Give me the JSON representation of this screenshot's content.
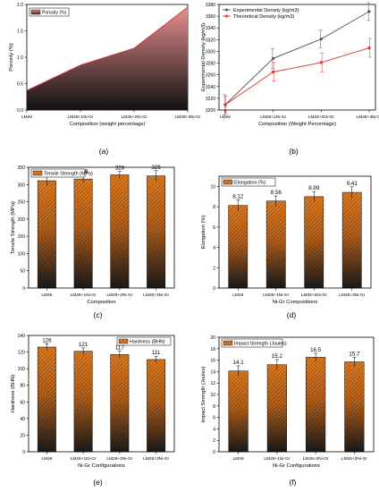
{
  "colors": {
    "porosity_top": "#e88e8e",
    "porosity_bottom": "#111111",
    "porosity_edge": "#d03030",
    "exp_line": "#555555",
    "theo_line": "#e03030",
    "bar_orange": "#e07b20",
    "bar_dark": "#1a1a1a"
  },
  "chart_data": [
    {
      "id": "a",
      "type": "area",
      "panel_label": "(a)",
      "categories": [
        "LM26",
        "LM26+1Ni-Gr",
        "LM26+2Ni-Gr",
        "LM26+3Ni-Gr"
      ],
      "series": [
        {
          "name": "Porosity (%)",
          "values": [
            0.37,
            0.85,
            1.17,
            1.95
          ]
        }
      ],
      "xlabel": "Composition (weight percentage)",
      "ylabel": "Porosity (%)",
      "ylim": [
        0,
        2.0
      ],
      "yticks": [
        "0.0",
        "0.5",
        "1.0",
        "1.5",
        "2.0"
      ],
      "legend": "top-left"
    },
    {
      "id": "b",
      "type": "line",
      "panel_label": "(b)",
      "categories": [
        "LM26",
        "LM26+1Ni-Gr",
        "LM26+2Ni-Gr",
        "LM26+3Ni-Gr"
      ],
      "series": [
        {
          "name": "Experimental Density (kg/m3)",
          "values": [
            3209,
            3288,
            3321,
            3368
          ],
          "errors": [
            17,
            17,
            15,
            15
          ]
        },
        {
          "name": "Theoretical Density (kg/m3)",
          "values": [
            3209,
            3265,
            3281,
            3306
          ],
          "errors": [
            15,
            16,
            16,
            16
          ]
        }
      ],
      "xlabel": "Composition (Weight Percentage)",
      "ylabel": "Experimental Density (kg/m3)",
      "ylim": [
        3200,
        3380
      ],
      "yticks": [
        "3200",
        "3220",
        "3240",
        "3260",
        "3280",
        "3300",
        "3320",
        "3340",
        "3360",
        "3380"
      ],
      "legend": "top-left"
    },
    {
      "id": "c",
      "type": "bar",
      "panel_label": "(c)",
      "categories": [
        "LM26",
        "LM26+1Ni-Gr",
        "LM26+2Ni-Gr",
        "LM26+3Ni-Gr"
      ],
      "series": [
        {
          "name": "Tensile Strength (MPa)",
          "values": [
            311,
            316,
            328,
            325
          ],
          "errors": [
            15,
            12,
            10,
            15
          ]
        }
      ],
      "value_labels": [
        "311",
        "316",
        "328",
        "325"
      ],
      "xlabel": "Composition",
      "ylabel": "Tensile Strength (MPa)",
      "ylim": [
        0,
        350
      ],
      "yticks": [
        "0",
        "50",
        "100",
        "150",
        "200",
        "250",
        "300",
        "350"
      ],
      "legend": "top-left"
    },
    {
      "id": "d",
      "type": "bar",
      "panel_label": "(d)",
      "categories": [
        "LM26",
        "LM26+1Ni-Gr",
        "LM26+2Ni-Gr",
        "LM26+3Ni-Gr"
      ],
      "series": [
        {
          "name": "Elongation (%)",
          "values": [
            8.12,
            8.56,
            8.99,
            9.41
          ],
          "errors": [
            0.55,
            0.5,
            0.5,
            0.55
          ]
        }
      ],
      "value_labels": [
        "8.12",
        "8.56",
        "8.99",
        "9.41"
      ],
      "xlabel": "Ni-Gr Compositions",
      "ylabel": "Elongation (%)",
      "ylim": [
        0,
        11
      ],
      "yticks": [
        "0",
        "2",
        "4",
        "6",
        "8",
        "10"
      ],
      "legend": "top-left"
    },
    {
      "id": "e",
      "type": "bar",
      "panel_label": "(e)",
      "categories": [
        "LM26",
        "LM26+1Ni-Gr",
        "LM26+2Ni-Gr",
        "LM26+3Ni-Gr"
      ],
      "series": [
        {
          "name": "Hardness (BHN)",
          "values": [
            126,
            121,
            117,
            111
          ],
          "errors": [
            4,
            4,
            4,
            4
          ]
        }
      ],
      "value_labels": [
        "126",
        "121",
        "117",
        "111"
      ],
      "xlabel": "Ni-Gr Configurations",
      "ylabel": "Hardness (BHN)",
      "ylim": [
        0,
        140
      ],
      "yticks": [
        "0",
        "20",
        "40",
        "60",
        "80",
        "100",
        "120",
        "140"
      ],
      "legend": "top-right"
    },
    {
      "id": "f",
      "type": "bar",
      "panel_label": "(f)",
      "categories": [
        "LM26",
        "LM26+1Ni-Gr",
        "LM26+2Ni-Gr",
        "LM26+3Ni-Gr"
      ],
      "series": [
        {
          "name": "Impact Strength (Joules)",
          "values": [
            14.1,
            15.2,
            16.5,
            15.7
          ],
          "errors": [
            0.9,
            0.9,
            0.7,
            0.8
          ]
        }
      ],
      "value_labels": [
        "14.1",
        "15.2",
        "16.5",
        "15.7"
      ],
      "xlabel": "Ni-Gr Configurations",
      "ylabel": "Impact Strength (Joules)",
      "ylim": [
        0,
        20
      ],
      "yticks": [
        "0",
        "2",
        "4",
        "6",
        "8",
        "10",
        "12",
        "14",
        "16",
        "18",
        "20"
      ],
      "legend": "top-left"
    }
  ]
}
